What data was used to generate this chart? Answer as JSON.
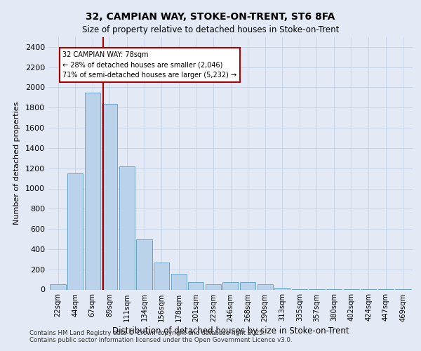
{
  "title1": "32, CAMPIAN WAY, STOKE-ON-TRENT, ST6 8FA",
  "title2": "Size of property relative to detached houses in Stoke-on-Trent",
  "xlabel": "Distribution of detached houses by size in Stoke-on-Trent",
  "ylabel": "Number of detached properties",
  "categories": [
    "22sqm",
    "44sqm",
    "67sqm",
    "89sqm",
    "111sqm",
    "134sqm",
    "156sqm",
    "178sqm",
    "201sqm",
    "223sqm",
    "246sqm",
    "268sqm",
    "290sqm",
    "313sqm",
    "335sqm",
    "357sqm",
    "380sqm",
    "402sqm",
    "424sqm",
    "447sqm",
    "469sqm"
  ],
  "values": [
    50,
    1150,
    1950,
    1840,
    1220,
    500,
    270,
    155,
    75,
    55,
    75,
    70,
    55,
    18,
    5,
    4,
    3,
    2,
    2,
    2,
    2
  ],
  "bar_color": "#bad2ea",
  "bar_edge_color": "#5f9cc5",
  "vline_color": "#aa0000",
  "vline_x": 2.62,
  "annotation_title": "32 CAMPIAN WAY: 78sqm",
  "annotation_line1": "← 28% of detached houses are smaller (2,046)",
  "annotation_line2": "71% of semi-detached houses are larger (5,232) →",
  "annotation_box_fc": "#ffffff",
  "annotation_box_ec": "#aa0000",
  "ylim": [
    0,
    2500
  ],
  "yticks": [
    0,
    200,
    400,
    600,
    800,
    1000,
    1200,
    1400,
    1600,
    1800,
    2000,
    2200,
    2400
  ],
  "grid_color": "#c8d4e8",
  "bg_color": "#e4eaf5",
  "footnote1": "Contains HM Land Registry data © Crown copyright and database right 2025.",
  "footnote2": "Contains public sector information licensed under the Open Government Licence v3.0."
}
